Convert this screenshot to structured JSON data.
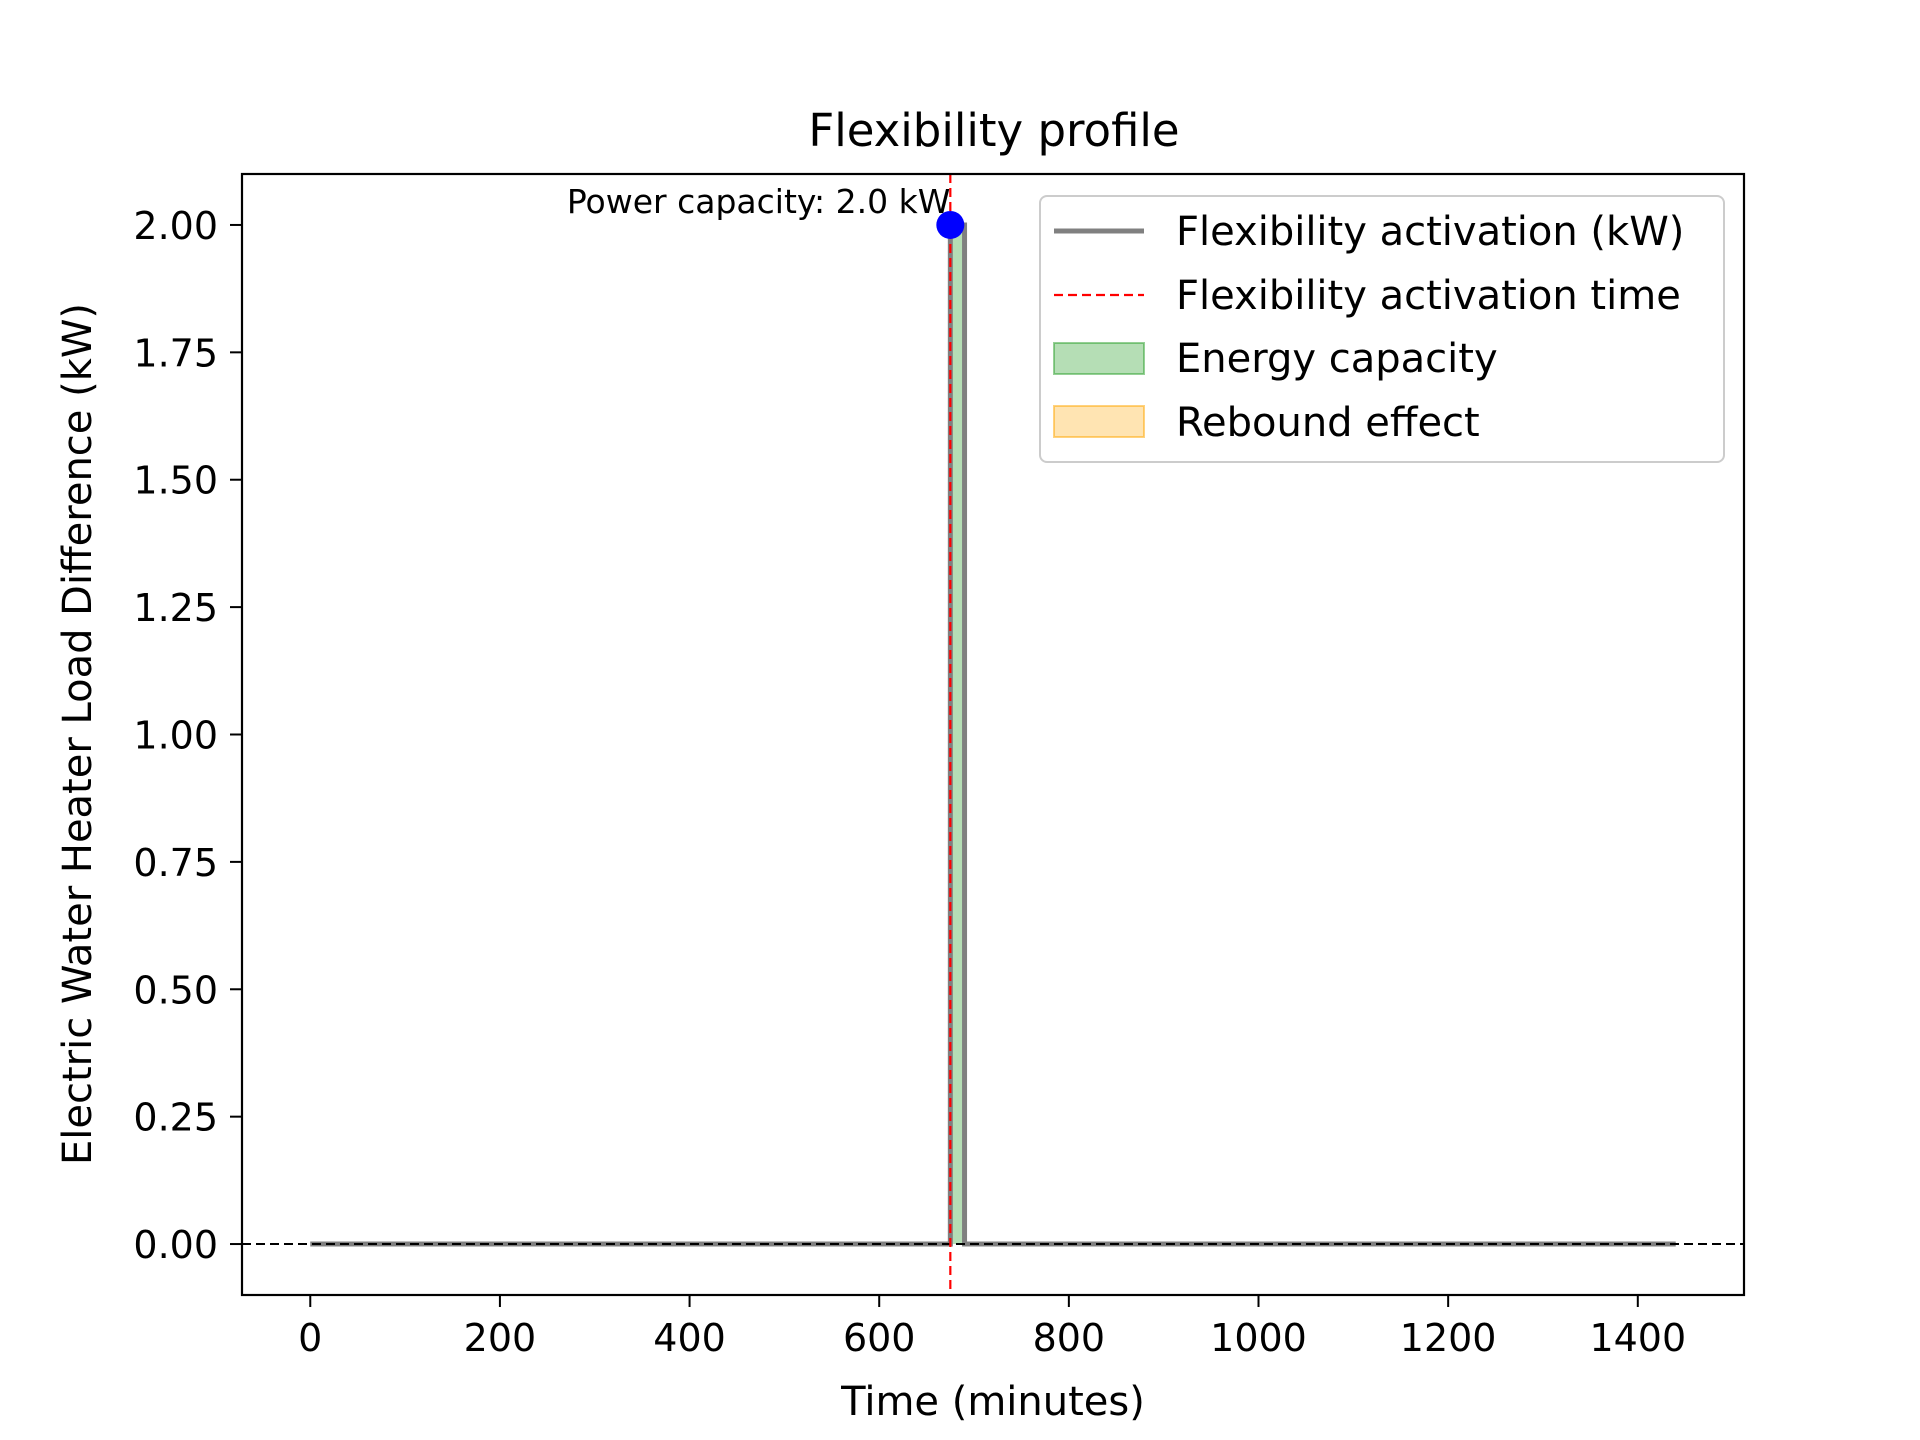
{
  "chart_data": {
    "type": "line",
    "title": "Flexibility profile",
    "xlabel": "Time (minutes)",
    "ylabel": "Electric Water Heater Load Difference (kW)",
    "xlim": [
      -72,
      1512
    ],
    "ylim": [
      -0.1,
      2.1
    ],
    "x_ticks": [
      0,
      200,
      400,
      600,
      800,
      1000,
      1200,
      1400
    ],
    "x_tick_labels": [
      "0",
      "200",
      "400",
      "600",
      "800",
      "1000",
      "1200",
      "1400"
    ],
    "y_ticks": [
      0.0,
      0.25,
      0.5,
      0.75,
      1.0,
      1.25,
      1.5,
      1.75,
      2.0
    ],
    "y_tick_labels": [
      "0.00",
      "0.25",
      "0.50",
      "0.75",
      "1.00",
      "1.25",
      "1.50",
      "1.75",
      "2.00"
    ],
    "grid": false,
    "legend_position": "top-right",
    "series": [
      {
        "name": "Flexibility activation (kW)",
        "kind": "line",
        "color": "#808080",
        "x": [
          0,
          675,
          675,
          690,
          690,
          1440
        ],
        "y": [
          0,
          0,
          2.0,
          2.0,
          0,
          0
        ]
      }
    ],
    "activation_time": {
      "name": "Flexibility activation time",
      "x": 675,
      "color": "#ff0000",
      "style": "dashed"
    },
    "energy_capacity": {
      "name": "Energy capacity",
      "x_start": 675,
      "x_end": 690,
      "y": 2.0,
      "color": "#2ca02c"
    },
    "rebound_effect": {
      "name": "Rebound effect",
      "color": "#ffa500"
    },
    "baseline": {
      "y": 0,
      "color": "#000000",
      "style": "dashed"
    },
    "peak_marker": {
      "x": 675,
      "y": 2.0,
      "color": "#0000ff"
    },
    "annotation": {
      "text": "Power capacity: 2.0 kW",
      "x": 675,
      "y": 2.0
    }
  }
}
